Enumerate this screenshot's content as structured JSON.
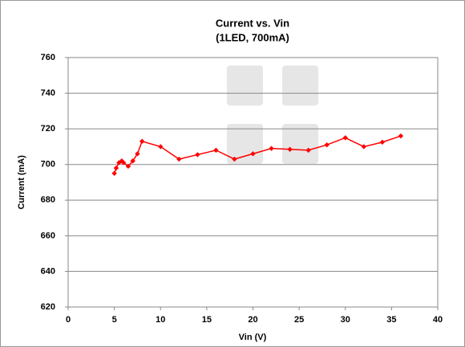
{
  "chart_data": {
    "type": "line",
    "title": "Current vs. Vin",
    "subtitle": "(1LED, 700mA)",
    "x_label": "Vin (V)",
    "y_label": "Current (mA)",
    "x": [
      5,
      5.2,
      5.5,
      5.8,
      6,
      6.5,
      7,
      7.5,
      8,
      10,
      12,
      14,
      16,
      18,
      20,
      22,
      24,
      26,
      28,
      30,
      32,
      34,
      36
    ],
    "values": [
      695,
      698,
      701,
      702,
      701,
      699,
      702,
      706,
      713,
      710,
      703,
      705.5,
      708,
      703,
      706,
      709,
      708.5,
      708,
      711,
      715,
      710,
      712.5,
      716
    ],
    "color": "#ff0000",
    "xlim": [
      0,
      40
    ],
    "xticks": [
      0,
      5,
      10,
      15,
      20,
      25,
      30,
      35,
      40
    ],
    "ylim": [
      620,
      760
    ],
    "yticks": [
      620,
      640,
      660,
      680,
      700,
      720,
      740,
      760
    ],
    "grid": true
  }
}
